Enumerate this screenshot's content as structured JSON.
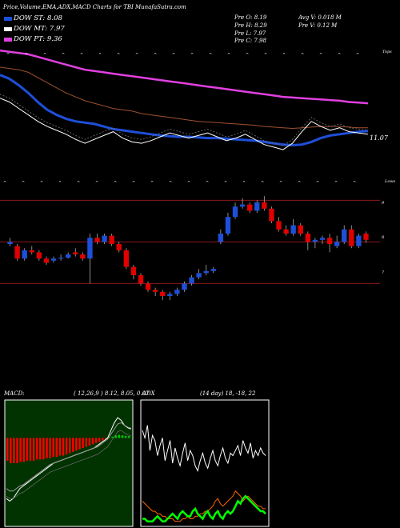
{
  "header": {
    "title": "Price,Volume,EMA,ADX,MACD Charts for TBI MunafaSutra.com",
    "legend": [
      {
        "label": "DOW ST: 8.08",
        "color": "#1e4fd8"
      },
      {
        "label": "DOW MT: 7.97",
        "color": "#ffffff"
      },
      {
        "label": "DOW PT: 9.36",
        "color": "#e040e0"
      }
    ],
    "stats": {
      "open": "Pre  O: 8.19",
      "high": "Pre  H: 8.29",
      "low": "Pre  L: 7.97",
      "close": "Pre  C: 7.98",
      "avgv": "Avg V: 0.018 M",
      "prev": "Pre  V: 0.12  M"
    }
  },
  "price_panel": {
    "last_price_label": "11.07",
    "right_label": "Tops",
    "colors": {
      "short": "#1e4fd8",
      "long": "#e040e0",
      "mid": "#a0522d",
      "price": "#ffffff"
    }
  },
  "candle_panel": {
    "right_label": "Lows",
    "levels": [
      "9",
      "8",
      "7"
    ],
    "colors": {
      "up": "#1e4fd8",
      "down": "#e00000",
      "level": "#8b1a1a"
    }
  },
  "macd_panel": {
    "label": "MACD:",
    "params": "( 12,26,9 ) 8.12, 8.05, 0.07",
    "colors": {
      "bg": "#003300",
      "hist": "#ff0000",
      "line": "#ffffff",
      "signal": "#888888"
    }
  },
  "adx_panel": {
    "label": "ADX",
    "params": "(14  day) 18, -18, 22",
    "colors": {
      "adx": "#ffffff",
      "plus": "#00ff00",
      "minus": "#ff6600"
    }
  },
  "chart_data": [
    {
      "type": "line",
      "title": "Price,Volume,EMA,ADX,MACD Charts for TBI MunafaSutra.com",
      "series": [
        {
          "name": "DOW ST",
          "values": [
            16.6,
            16.3,
            15.8,
            15.2,
            14.5,
            13.9,
            13.5,
            13.2,
            13.0,
            12.9,
            12.8,
            12.6,
            12.4,
            12.3,
            12.2,
            12.1,
            12.0,
            11.9,
            11.85,
            11.8,
            11.8,
            11.75,
            11.7,
            11.7,
            11.65,
            11.6,
            11.55,
            11.5,
            11.4,
            11.3,
            11.2,
            11.15,
            11.2,
            11.4,
            11.7,
            11.9,
            12.0,
            12.1,
            12.2,
            12.25
          ]
        },
        {
          "name": "DOW MT",
          "values": [
            14.8,
            14.5,
            14.0,
            13.5,
            13.0,
            12.6,
            12.3,
            12.0,
            11.6,
            11.3,
            11.6,
            11.9,
            12.2,
            11.7,
            11.4,
            11.3,
            11.5,
            11.8,
            12.1,
            11.9,
            11.7,
            11.9,
            12.1,
            11.8,
            11.5,
            11.7,
            12.0,
            11.6,
            11.2,
            11.0,
            10.8,
            11.3,
            12.2,
            13.0,
            12.6,
            12.3,
            12.5,
            12.2,
            12.1,
            12.0
          ]
        },
        {
          "name": "DOW PT",
          "values": [
            18.5,
            18.4,
            18.3,
            18.2,
            18.0,
            17.8,
            17.6,
            17.4,
            17.2,
            17.0,
            16.9,
            16.8,
            16.7,
            16.6,
            16.5,
            16.4,
            16.3,
            16.2,
            16.1,
            16.0,
            15.9,
            15.8,
            15.7,
            15.6,
            15.5,
            15.4,
            15.3,
            15.2,
            15.1,
            15.0,
            14.9,
            14.85,
            14.8,
            14.75,
            14.7,
            14.65,
            14.6,
            14.5,
            14.45,
            14.4
          ]
        },
        {
          "name": "",
          "values": [
            17.2,
            17.1,
            17.0,
            16.8,
            16.4,
            16.0,
            15.6,
            15.2,
            14.9,
            14.6,
            14.4,
            14.2,
            14.0,
            13.9,
            13.8,
            13.6,
            13.5,
            13.4,
            13.3,
            13.2,
            13.1,
            13.0,
            12.95,
            12.9,
            12.85,
            12.8,
            12.75,
            12.7,
            12.6,
            12.55,
            12.5,
            12.45,
            12.5,
            12.55,
            12.6,
            12.6,
            12.6,
            12.55,
            12.5,
            12.5
          ]
        }
      ]
    },
    {
      "type": "candlestick",
      "levels": [
        9,
        8,
        7
      ],
      "candles": [
        {
          "o": 7.95,
          "c": 8.0,
          "h": 8.1,
          "l": 7.9
        },
        {
          "o": 7.9,
          "c": 7.6,
          "h": 7.95,
          "l": 7.55
        },
        {
          "o": 7.6,
          "c": 7.8,
          "h": 7.85,
          "l": 7.55
        },
        {
          "o": 7.8,
          "c": 7.75,
          "h": 7.9,
          "l": 7.7
        },
        {
          "o": 7.75,
          "c": 7.6,
          "h": 7.8,
          "l": 7.55
        },
        {
          "o": 7.6,
          "c": 7.5,
          "h": 7.65,
          "l": 7.45
        },
        {
          "o": 7.55,
          "c": 7.6,
          "h": 7.65,
          "l": 7.5
        },
        {
          "o": 7.6,
          "c": 7.62,
          "h": 7.7,
          "l": 7.55
        },
        {
          "o": 7.62,
          "c": 7.7,
          "h": 7.75,
          "l": 7.6
        },
        {
          "o": 7.75,
          "c": 7.7,
          "h": 7.85,
          "l": 7.65
        },
        {
          "o": 7.7,
          "c": 7.6,
          "h": 7.75,
          "l": 7.55
        },
        {
          "o": 7.6,
          "c": 8.1,
          "h": 8.2,
          "l": 7.0
        },
        {
          "o": 8.1,
          "c": 8.0,
          "h": 8.2,
          "l": 7.95
        },
        {
          "o": 8.0,
          "c": 8.15,
          "h": 8.2,
          "l": 7.95
        },
        {
          "o": 8.15,
          "c": 7.95,
          "h": 8.2,
          "l": 7.9
        },
        {
          "o": 7.95,
          "c": 7.8,
          "h": 8.0,
          "l": 7.75
        },
        {
          "o": 7.8,
          "c": 7.4,
          "h": 7.85,
          "l": 7.35
        },
        {
          "o": 7.4,
          "c": 7.2,
          "h": 7.45,
          "l": 7.1
        },
        {
          "o": 7.2,
          "c": 7.0,
          "h": 7.25,
          "l": 6.95
        },
        {
          "o": 7.0,
          "c": 6.85,
          "h": 7.05,
          "l": 6.8
        },
        {
          "o": 6.85,
          "c": 6.8,
          "h": 6.9,
          "l": 6.7
        },
        {
          "o": 6.8,
          "c": 6.7,
          "h": 6.85,
          "l": 6.6
        },
        {
          "o": 6.7,
          "c": 6.75,
          "h": 6.8,
          "l": 6.6
        },
        {
          "o": 6.75,
          "c": 6.85,
          "h": 6.9,
          "l": 6.7
        },
        {
          "o": 6.85,
          "c": 7.0,
          "h": 7.05,
          "l": 6.8
        },
        {
          "o": 7.0,
          "c": 7.15,
          "h": 7.2,
          "l": 6.95
        },
        {
          "o": 7.15,
          "c": 7.25,
          "h": 7.35,
          "l": 7.1
        },
        {
          "o": 7.25,
          "c": 7.3,
          "h": 7.45,
          "l": 7.2
        },
        {
          "o": 7.3,
          "c": 7.35,
          "h": 7.4,
          "l": 7.25
        },
        {
          "o": 8.0,
          "c": 8.2,
          "h": 8.3,
          "l": 7.95
        },
        {
          "o": 8.2,
          "c": 8.6,
          "h": 8.7,
          "l": 8.15
        },
        {
          "o": 8.6,
          "c": 8.85,
          "h": 8.95,
          "l": 8.55
        },
        {
          "o": 8.85,
          "c": 8.9,
          "h": 9.05,
          "l": 8.8
        },
        {
          "o": 8.9,
          "c": 8.75,
          "h": 8.95,
          "l": 8.7
        },
        {
          "o": 8.75,
          "c": 8.95,
          "h": 9.0,
          "l": 8.7
        },
        {
          "o": 8.95,
          "c": 8.8,
          "h": 9.1,
          "l": 8.75
        },
        {
          "o": 8.8,
          "c": 8.5,
          "h": 8.85,
          "l": 8.45
        },
        {
          "o": 8.5,
          "c": 8.3,
          "h": 8.6,
          "l": 8.25
        },
        {
          "o": 8.3,
          "c": 8.2,
          "h": 8.4,
          "l": 8.15
        },
        {
          "o": 8.2,
          "c": 8.4,
          "h": 8.55,
          "l": 8.15
        },
        {
          "o": 8.4,
          "c": 8.2,
          "h": 8.45,
          "l": 8.15
        },
        {
          "o": 8.2,
          "c": 8.0,
          "h": 8.25,
          "l": 7.8
        },
        {
          "o": 8.0,
          "c": 8.05,
          "h": 8.1,
          "l": 7.85
        },
        {
          "o": 8.05,
          "c": 8.1,
          "h": 8.15,
          "l": 7.95
        },
        {
          "o": 8.1,
          "c": 7.95,
          "h": 8.2,
          "l": 7.75
        },
        {
          "o": 7.9,
          "c": 8.0,
          "h": 8.15,
          "l": 7.85
        },
        {
          "o": 8.0,
          "c": 8.3,
          "h": 8.4,
          "l": 7.95
        },
        {
          "o": 8.3,
          "c": 7.9,
          "h": 8.4,
          "l": 7.85
        },
        {
          "o": 7.9,
          "c": 8.15,
          "h": 8.2,
          "l": 7.85
        },
        {
          "o": 8.2,
          "c": 8.05,
          "h": 8.25,
          "l": 7.98
        }
      ]
    },
    {
      "type": "bar",
      "title": "MACD",
      "hist": [
        -0.9,
        -1.0,
        -1.0,
        -1.0,
        -0.95,
        -0.95,
        -0.9,
        -0.9,
        -0.9,
        -0.85,
        -0.85,
        -0.85,
        -0.8,
        -0.8,
        -0.75,
        -0.75,
        -0.7,
        -0.7,
        -0.65,
        -0.6,
        -0.55,
        -0.5,
        -0.45,
        -0.4,
        -0.35,
        -0.3,
        -0.25,
        -0.2,
        -0.15,
        -0.1,
        -0.05,
        0.02,
        0.05,
        0.1,
        0.12,
        0.1,
        0.08,
        0.07
      ],
      "macd": [
        -2.4,
        -2.5,
        -2.4,
        -2.2,
        -2.0,
        -1.9,
        -1.8,
        -1.7,
        -1.6,
        -1.5,
        -1.4,
        -1.3,
        -1.2,
        -1.1,
        -1.0,
        -0.95,
        -0.9,
        -0.85,
        -0.8,
        -0.75,
        -0.7,
        -0.65,
        -0.6,
        -0.55,
        -0.5,
        -0.45,
        -0.4,
        -0.3,
        -0.2,
        -0.1,
        0.0,
        0.3,
        0.6,
        0.8,
        0.7,
        0.5,
        0.4,
        0.35
      ],
      "signal": [
        -2.0,
        -2.1,
        -2.1,
        -2.0,
        -1.9,
        -1.85,
        -1.75,
        -1.65,
        -1.55,
        -1.45,
        -1.35,
        -1.25,
        -1.15,
        -1.05,
        -1.0,
        -0.95,
        -0.9,
        -0.85,
        -0.8,
        -0.75,
        -0.7,
        -0.65,
        -0.6,
        -0.55,
        -0.5,
        -0.45,
        -0.4,
        -0.35,
        -0.25,
        -0.15,
        -0.05,
        0.15,
        0.35,
        0.55,
        0.6,
        0.5,
        0.42,
        0.38
      ]
    },
    {
      "type": "line",
      "title": "ADX",
      "series": [
        {
          "name": "",
          "values": [
            38,
            35,
            40,
            30,
            36,
            34,
            28,
            32,
            35,
            26,
            30,
            34,
            25,
            31,
            27,
            24,
            29,
            33,
            26,
            30,
            28,
            24,
            22,
            26,
            29,
            25,
            23,
            27,
            30,
            26,
            24,
            28,
            31,
            27,
            25,
            29,
            28,
            30,
            32,
            28,
            34,
            31,
            29,
            33,
            27,
            30,
            28,
            31,
            29,
            28
          ]
        },
        {
          "name": "",
          "values": [
            10,
            9,
            8,
            7,
            6,
            6,
            5,
            5,
            4,
            4,
            3,
            3,
            3,
            2,
            2,
            2,
            3,
            3,
            4,
            3,
            3,
            4,
            4,
            5,
            5,
            6,
            6,
            7,
            8,
            10,
            11,
            9,
            8,
            9,
            10,
            11,
            12,
            14,
            13,
            12,
            10,
            11,
            12,
            11,
            10,
            9,
            8,
            8,
            7,
            7
          ]
        },
        {
          "name": "",
          "values": [
            3,
            3,
            2,
            2,
            2,
            3,
            4,
            3,
            2,
            2,
            3,
            4,
            5,
            4,
            3,
            5,
            6,
            5,
            4,
            4,
            6,
            7,
            5,
            4,
            3,
            5,
            6,
            4,
            3,
            5,
            6,
            4,
            3,
            5,
            6,
            5,
            6,
            8,
            10,
            9,
            11,
            12,
            11,
            10,
            9,
            8,
            7,
            6,
            6,
            5
          ]
        }
      ]
    }
  ]
}
